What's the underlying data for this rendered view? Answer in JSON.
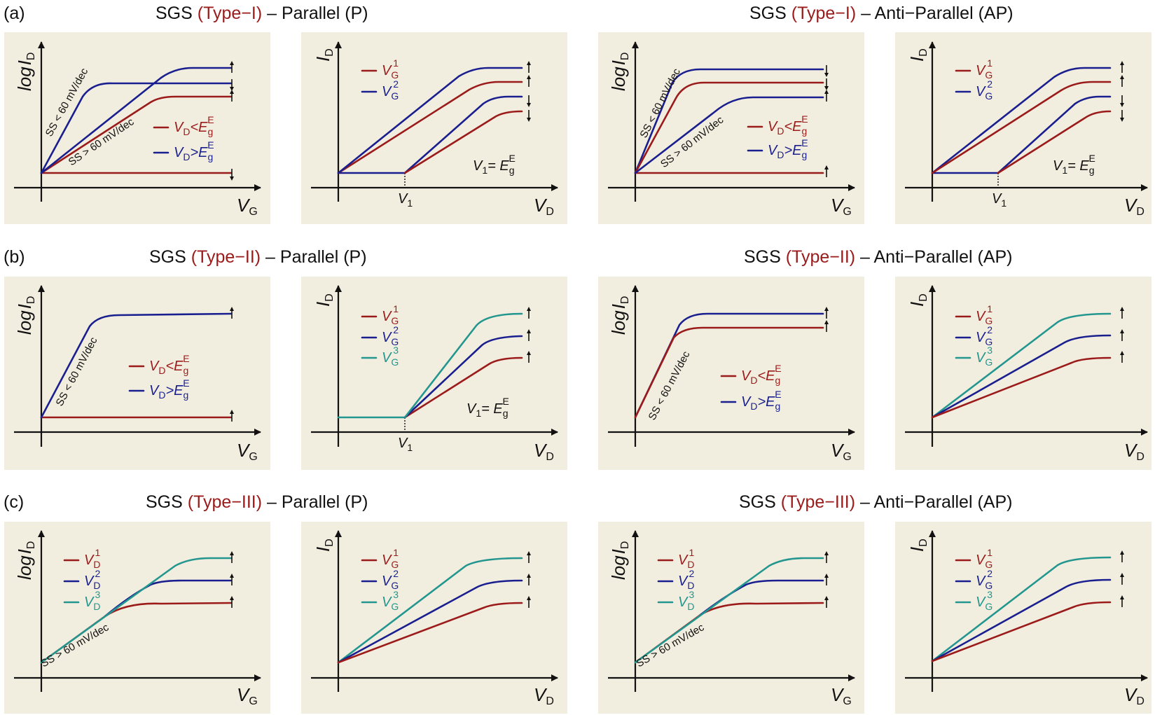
{
  "rows": [
    {
      "label": "(a)",
      "titles": [
        {
          "prefix": "SGS ",
          "type": "(Type−I)",
          "suffix": " – Parallel (P)"
        },
        {
          "prefix": "SGS ",
          "type": "(Type−I)",
          "suffix": " – Anti−Parallel (AP)"
        }
      ],
      "annotations": {
        "ss_lt": "SS < 60 mV/dec",
        "ss_gt": "SS > 60 mV/dec",
        "v1_tick": "V",
        "v1_sub": "1",
        "v1_eq": "V",
        "v1_eq_sub": "1",
        "v1_eq_rhs": "= E",
        "v1_eq_rhs_sub": "g",
        "v1_eq_rhs_sup": "E"
      }
    },
    {
      "label": "(b)",
      "titles": [
        {
          "prefix": "SGS ",
          "type": "(Type−II)",
          "suffix": " – Parallel (P)"
        },
        {
          "prefix": "SGS ",
          "type": "(Type−II)",
          "suffix": " – Anti−Parallel (AP)"
        }
      ],
      "annotations": {
        "ss_lt": "SS < 60 mV/dec"
      }
    },
    {
      "label": "(c)",
      "titles": [
        {
          "prefix": "SGS ",
          "type": "(Type−III)",
          "suffix": " – Parallel (P)"
        },
        {
          "prefix": "SGS ",
          "type": "(Type−III)",
          "suffix": " – Anti−Parallel (AP)"
        }
      ],
      "annotations": {
        "ss_gt": "SS > 60 mV/dec"
      }
    }
  ],
  "axes": {
    "log_id": "log",
    "id": "I",
    "id_sub": "D",
    "vg": "V",
    "vg_sub": "G",
    "vd": "V",
    "vd_sub": "D"
  },
  "legends": {
    "vd_lt": {
      "v": "V",
      "sub": "D",
      "op": "<E",
      "op_sub": "g",
      "op_sup": "E"
    },
    "vd_gt": {
      "v": "V",
      "sub": "D",
      "op": ">E",
      "op_sub": "g",
      "op_sup": "E"
    },
    "vg1": {
      "v": "V",
      "sub": "G",
      "sup": "1"
    },
    "vg2": {
      "v": "V",
      "sub": "G",
      "sup": "2"
    },
    "vg3": {
      "v": "V",
      "sub": "G",
      "sup": "3"
    },
    "vd1": {
      "v": "V",
      "sub": "D",
      "sup": "1"
    },
    "vd2": {
      "v": "V",
      "sub": "D",
      "sup": "2"
    },
    "vd3": {
      "v": "V",
      "sub": "D",
      "sup": "3"
    }
  },
  "colors": {
    "red": "#9b1b1b",
    "blue": "#1a1f8f",
    "teal": "#22968f",
    "panel": "#f2eedf"
  }
}
